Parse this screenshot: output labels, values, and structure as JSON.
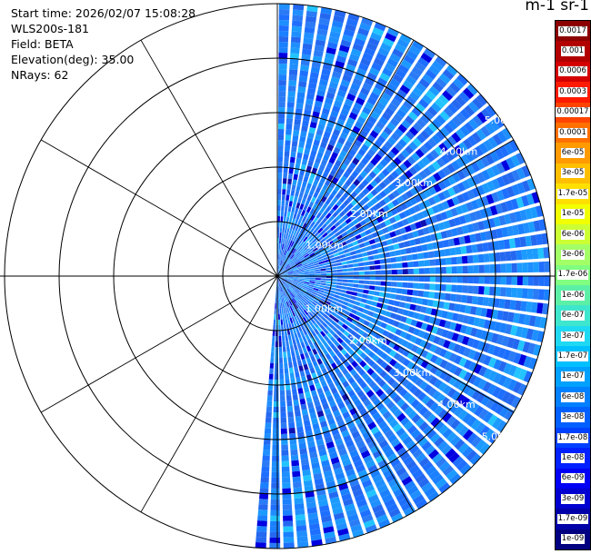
{
  "info": {
    "start_time": "Start time: 2026/02/07 15:08:28",
    "site": "WLS200s-181",
    "field": "Field: BETA",
    "elevation": "Elevation(deg): 35.00",
    "nrays": "NRays: 62"
  },
  "colorbar": {
    "units_label": "m-1 sr-1",
    "labels": [
      "0.0017",
      "0.001",
      "0.0006",
      "0.0003",
      "0.00017",
      "0.0001",
      "6e-05",
      "3e-05",
      "1.7e-05",
      "1e-05",
      "6e-06",
      "3e-06",
      "1.7e-06",
      "1e-06",
      "6e-07",
      "3e-07",
      "1.7e-07",
      "1e-07",
      "6e-08",
      "3e-08",
      "1.7e-08",
      "1e-08",
      "6e-09",
      "3e-09",
      "1.7e-09",
      "1e-09"
    ],
    "colors": [
      "#8b0000",
      "#b20000",
      "#d40000",
      "#ff1a00",
      "#ff4400",
      "#ff7000",
      "#ff9a00",
      "#ffbf00",
      "#ffe000",
      "#f2ff00",
      "#ccff33",
      "#a3ff66",
      "#80ff80",
      "#5cf0a6",
      "#3de6cc",
      "#1fd9f2",
      "#00c0ff",
      "#00a0ff",
      "#0080ff",
      "#0060ff",
      "#0040ff",
      "#0020ff",
      "#0000f5",
      "#0000d0",
      "#0000a8",
      "#000080"
    ]
  },
  "chart_data": {
    "type": "heatmap",
    "subtype": "polar PPI scan",
    "field": "BETA",
    "elevation_deg": 35.0,
    "n_rays": 62,
    "azimuth_range_deg": [
      0,
      185
    ],
    "range_km": [
      0,
      5.0
    ],
    "range_rings_km": [
      1,
      2,
      3,
      4,
      5
    ],
    "ring_labels": [
      "1.00km",
      "2.00km",
      "3.00km",
      "4.00km",
      "5.00km"
    ],
    "dominant_value": "≈3e-08 to 6e-08 m-1 sr-1 (blue)",
    "spoke_angles_deg": [
      0,
      30,
      60,
      90,
      120,
      150,
      180,
      210,
      240,
      270,
      300,
      330
    ]
  }
}
